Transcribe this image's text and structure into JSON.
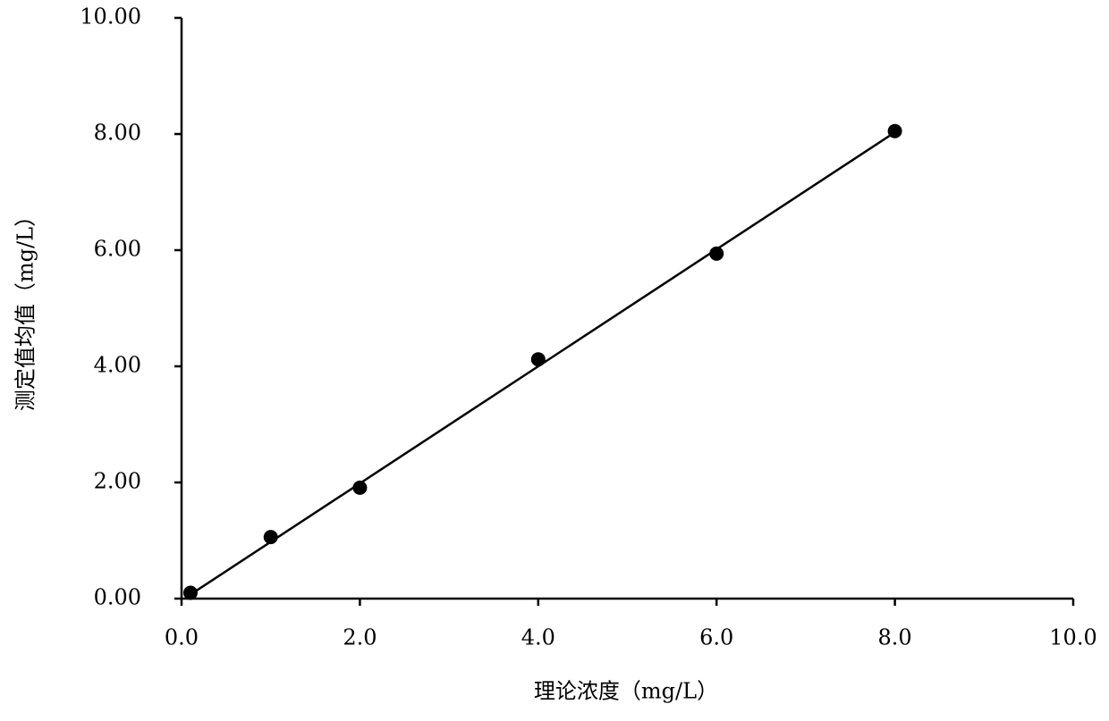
{
  "chart_data": {
    "type": "scatter",
    "xlabel": "理论浓度（mg/L）",
    "ylabel": "测定值均值（mg/L）",
    "series": [
      {
        "color": "#000000",
        "x": [
          0.1,
          1.0,
          2.0,
          4.0,
          6.0,
          8.0
        ],
        "values": [
          0.1,
          1.06,
          1.91,
          4.12,
          5.94,
          8.05
        ]
      }
    ],
    "trendline": {
      "color": "#000000",
      "x": [
        0.1,
        8.0
      ],
      "values": [
        0.07,
        8.03
      ]
    },
    "xlim": [
      0,
      10
    ],
    "ylim": [
      0,
      10
    ],
    "xticks": [
      {
        "value": 0,
        "label": "0.0"
      },
      {
        "value": 2,
        "label": "2.0"
      },
      {
        "value": 4,
        "label": "4.0"
      },
      {
        "value": 6,
        "label": "6.0"
      },
      {
        "value": 8,
        "label": "8.0"
      },
      {
        "value": 10,
        "label": "10.0"
      }
    ],
    "yticks": [
      {
        "value": 0,
        "label": "0.00"
      },
      {
        "value": 2,
        "label": "2.00"
      },
      {
        "value": 4,
        "label": "4.00"
      },
      {
        "value": 6,
        "label": "6.00"
      },
      {
        "value": 8,
        "label": "8.00"
      },
      {
        "value": 10,
        "label": "10.00"
      }
    ],
    "grid": false
  }
}
